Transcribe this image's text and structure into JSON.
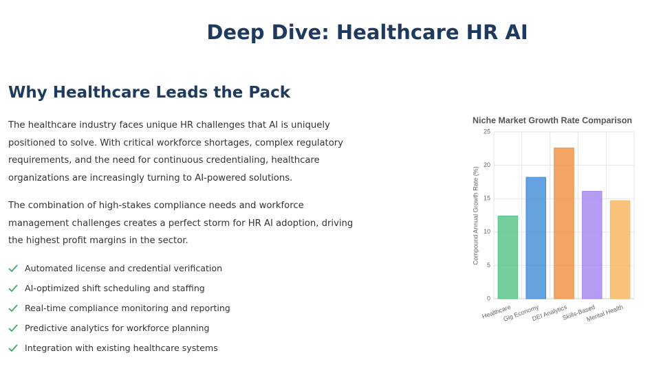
{
  "header": {
    "title": "Deep Dive: Healthcare HR AI"
  },
  "section": {
    "heading": "Why Healthcare Leads the Pack",
    "paragraphs": [
      "The healthcare industry faces unique HR challenges that AI is uniquely positioned to solve. With critical workforce shortages, complex regulatory requirements, and the need for continuous credentialing, healthcare organizations are increasingly turning to AI-powered solutions.",
      "The combination of high-stakes compliance needs and workforce management challenges creates a perfect storm for HR AI adoption, driving the highest profit margins in the sector."
    ],
    "features": [
      "Automated license and credential verification",
      "AI-optimized shift scheduling and staffing",
      "Real-time compliance monitoring and reporting",
      "Predictive analytics for workforce planning",
      "Integration with existing healthcare systems"
    ]
  },
  "chart_data": {
    "type": "bar",
    "title": "Niche Market Growth Rate Comparison",
    "y_label": "Compound Annual Growth Rate (%)",
    "categories": [
      "Healthcare",
      "Gig Economy",
      "DEI Analytics",
      "Skills-Based",
      "Mental Health"
    ],
    "values": [
      12.4,
      18.2,
      22.6,
      16.1,
      14.7
    ],
    "colors": [
      "#5cc48a",
      "#4a90d9",
      "#f0954a",
      "#a98af0",
      "#f6b865"
    ],
    "ylim": [
      0,
      25
    ],
    "yticks": [
      0,
      5,
      10,
      15,
      20,
      25
    ],
    "grid": true
  }
}
